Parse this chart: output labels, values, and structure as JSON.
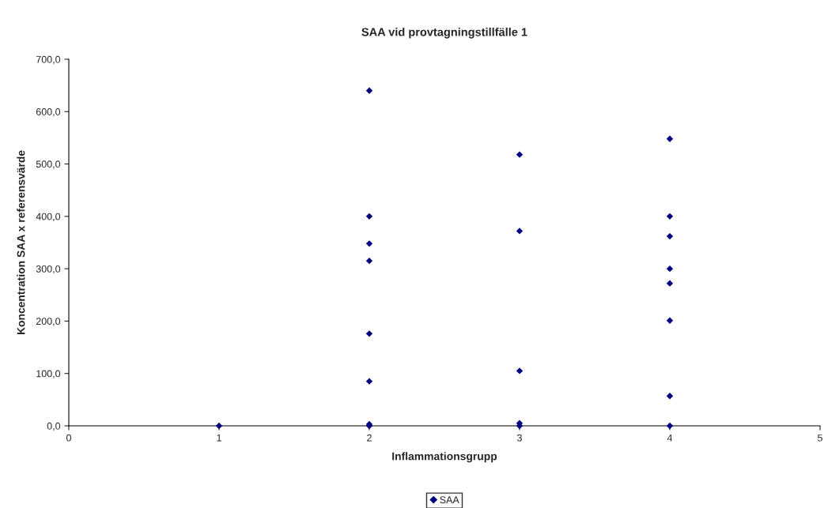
{
  "chart_data": {
    "type": "scatter",
    "title": "SAA vid provtagningstillfälle 1",
    "xlabel": "Inflammationsgrupp",
    "ylabel": "Koncentration SAA x referensvärde",
    "series": [
      {
        "name": "SAA",
        "color": "#000080",
        "x": [
          1,
          2,
          2,
          2,
          2,
          2,
          2,
          2,
          2,
          3,
          3,
          3,
          3,
          3,
          4,
          4,
          4,
          4,
          4,
          4,
          4,
          4
        ],
        "values": [
          0,
          640,
          400,
          348,
          315,
          176,
          85,
          3,
          0,
          518,
          372,
          105,
          5,
          0,
          548,
          400,
          362,
          300,
          272,
          201,
          57,
          0
        ]
      }
    ],
    "xlim": [
      0,
      5
    ],
    "xticks": [
      0,
      1,
      2,
      3,
      4,
      5
    ],
    "ylim": [
      0,
      700
    ],
    "yticks": [
      {
        "value": 0,
        "label": "0,0"
      },
      {
        "value": 100,
        "label": "100,0"
      },
      {
        "value": 200,
        "label": "200,0"
      },
      {
        "value": 300,
        "label": "300,0"
      },
      {
        "value": 400,
        "label": "400,0"
      },
      {
        "value": 500,
        "label": "500,0"
      },
      {
        "value": 600,
        "label": "600,0"
      },
      {
        "value": 700,
        "label": "700,0"
      }
    ],
    "marker": "diamond",
    "grid": false,
    "legend": "bottom"
  }
}
